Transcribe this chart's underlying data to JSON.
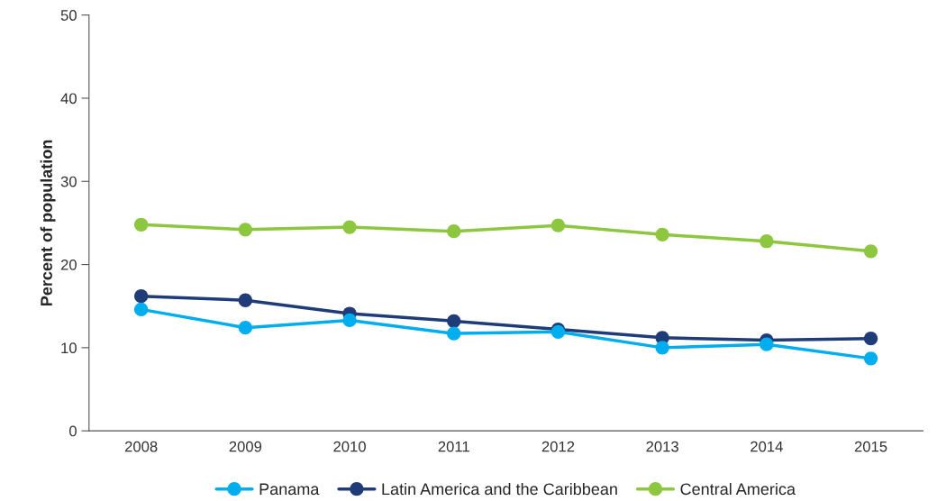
{
  "chart_data": {
    "type": "line",
    "ylabel": "Percent of population",
    "categories": [
      "2008",
      "2009",
      "2010",
      "2011",
      "2012",
      "2013",
      "2014",
      "2015"
    ],
    "series": [
      {
        "name": "Panama",
        "color": "#00aeef",
        "values": [
          14.6,
          12.4,
          13.3,
          11.7,
          11.9,
          10.0,
          10.4,
          8.7
        ]
      },
      {
        "name": "Latin America and the Caribbean",
        "color": "#1f3c78",
        "values": [
          16.2,
          15.7,
          14.1,
          13.2,
          12.2,
          11.2,
          10.9,
          11.1
        ]
      },
      {
        "name": "Central America",
        "color": "#8dc63f",
        "values": [
          24.8,
          24.2,
          24.5,
          24.0,
          24.7,
          23.6,
          22.8,
          21.6
        ]
      }
    ],
    "ylim": [
      0,
      50
    ],
    "yticks": [
      0,
      10,
      20,
      30,
      40,
      50
    ],
    "grid": false,
    "legend": "bottom",
    "marker": "circle",
    "line_style": "solid"
  }
}
